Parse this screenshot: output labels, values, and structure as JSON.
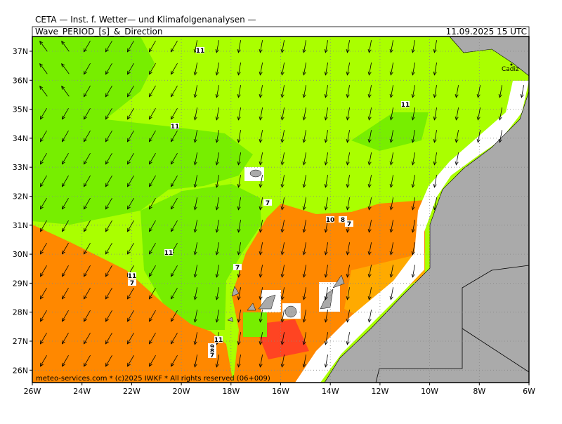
{
  "header": {
    "institute": "CETA — Inst. f. Wetter— und Klimafolgenanalysen —",
    "product": "Wave_PERIOD_[s]_&_Direction",
    "valid_time": "11.09.2025 15 UTC"
  },
  "map": {
    "lat_labels": [
      "37N",
      "36N",
      "35N",
      "34N",
      "33N",
      "32N",
      "31N",
      "30N",
      "29N",
      "28N",
      "27N",
      "26N"
    ],
    "lon_labels": [
      "26W",
      "24W",
      "22W",
      "20W",
      "18W",
      "16W",
      "14W",
      "12W",
      "10W",
      "8W",
      "6W"
    ],
    "contour_labels": [
      "11",
      "11",
      "11",
      "11",
      "11",
      "7",
      "7",
      "10",
      "8",
      "7",
      "7",
      "11",
      "9",
      "8",
      "7"
    ],
    "place_labels": [
      "Cadiz"
    ]
  },
  "footer": "meteo-services.com * (c)2025 IWKF * All rights reserved (06+009)"
}
